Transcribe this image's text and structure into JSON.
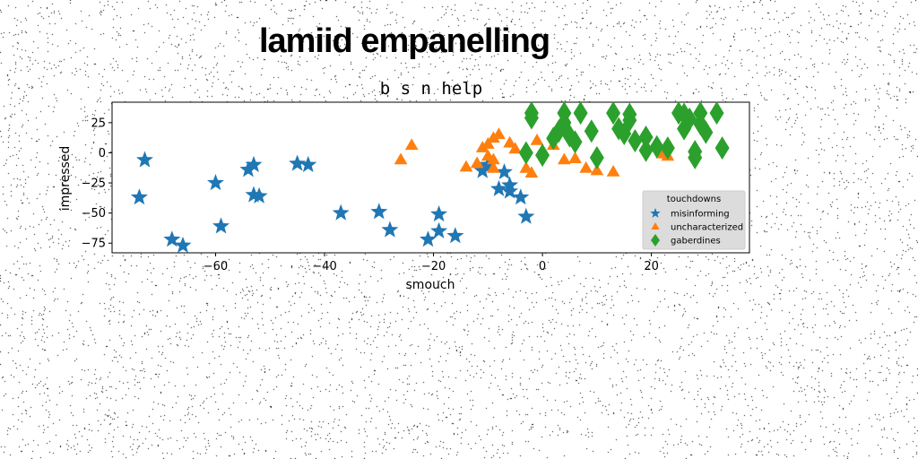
{
  "suptitle": "lamiid empanelling",
  "chart_data": {
    "type": "scatter",
    "title": "b s n help",
    "xlabel": "smouch",
    "ylabel": "impressed",
    "xlim": [
      -79,
      38
    ],
    "ylim": [
      -83,
      42
    ],
    "xticks": [
      -60,
      -40,
      -20,
      0,
      20
    ],
    "yticks": [
      25,
      0,
      -25,
      -50,
      -75
    ],
    "grid": false,
    "legend": {
      "placement": "lower-right",
      "title": "touchdowns"
    },
    "series": [
      {
        "name": "misinforming",
        "marker": "star",
        "color": "#1f77b4",
        "points": [
          [
            -73,
            -6
          ],
          [
            -74,
            -37
          ],
          [
            -68,
            -72
          ],
          [
            -66,
            -77
          ],
          [
            -60,
            -25
          ],
          [
            -59,
            -61
          ],
          [
            -54,
            -14
          ],
          [
            -53,
            -10
          ],
          [
            -53,
            -35
          ],
          [
            -52,
            -36
          ],
          [
            -45,
            -9
          ],
          [
            -43,
            -10
          ],
          [
            -37,
            -50
          ],
          [
            -30,
            -49
          ],
          [
            -28,
            -64
          ],
          [
            -21,
            -72
          ],
          [
            -19,
            -65
          ],
          [
            -19,
            -51
          ],
          [
            -16,
            -69
          ],
          [
            -11,
            -15
          ],
          [
            -10,
            -10
          ],
          [
            -8,
            -30
          ],
          [
            -7,
            -16
          ],
          [
            -6,
            -32
          ],
          [
            -6,
            -27
          ],
          [
            -4,
            -37
          ],
          [
            -3,
            -53
          ]
        ]
      },
      {
        "name": "uncharacterized",
        "marker": "triangle",
        "color": "#ff7f0e",
        "points": [
          [
            -26,
            -6
          ],
          [
            -24,
            6
          ],
          [
            -14,
            -12
          ],
          [
            -12,
            -9
          ],
          [
            -11,
            4
          ],
          [
            -10,
            7
          ],
          [
            -10,
            -3
          ],
          [
            -9,
            12
          ],
          [
            -9,
            -6
          ],
          [
            -9,
            -13
          ],
          [
            -8,
            15
          ],
          [
            -6,
            8
          ],
          [
            -5,
            3
          ],
          [
            -3,
            -13
          ],
          [
            -2,
            -17
          ],
          [
            -1,
            10
          ],
          [
            2,
            6
          ],
          [
            4,
            -6
          ],
          [
            6,
            -5
          ],
          [
            8,
            -13
          ],
          [
            10,
            -15
          ],
          [
            13,
            -16
          ],
          [
            22,
            -1
          ],
          [
            23,
            -3
          ]
        ]
      },
      {
        "name": "gaberdines",
        "marker": "diamond",
        "color": "#2ca02c",
        "points": [
          [
            -2,
            33
          ],
          [
            -2,
            29
          ],
          [
            -3,
            0
          ],
          [
            0,
            -2
          ],
          [
            2,
            12
          ],
          [
            3,
            18
          ],
          [
            4,
            33
          ],
          [
            4,
            25
          ],
          [
            5,
            14
          ],
          [
            6,
            9
          ],
          [
            7,
            33
          ],
          [
            9,
            18
          ],
          [
            10,
            -4
          ],
          [
            13,
            33
          ],
          [
            14,
            20
          ],
          [
            15,
            16
          ],
          [
            16,
            32
          ],
          [
            16,
            27
          ],
          [
            17,
            10
          ],
          [
            19,
            13
          ],
          [
            19,
            2
          ],
          [
            21,
            5
          ],
          [
            23,
            4
          ],
          [
            25,
            33
          ],
          [
            26,
            20
          ],
          [
            26,
            32
          ],
          [
            27,
            28
          ],
          [
            28,
            -4
          ],
          [
            28,
            1
          ],
          [
            29,
            33
          ],
          [
            29,
            24
          ],
          [
            30,
            17
          ],
          [
            32,
            33
          ],
          [
            33,
            4
          ]
        ]
      }
    ]
  }
}
